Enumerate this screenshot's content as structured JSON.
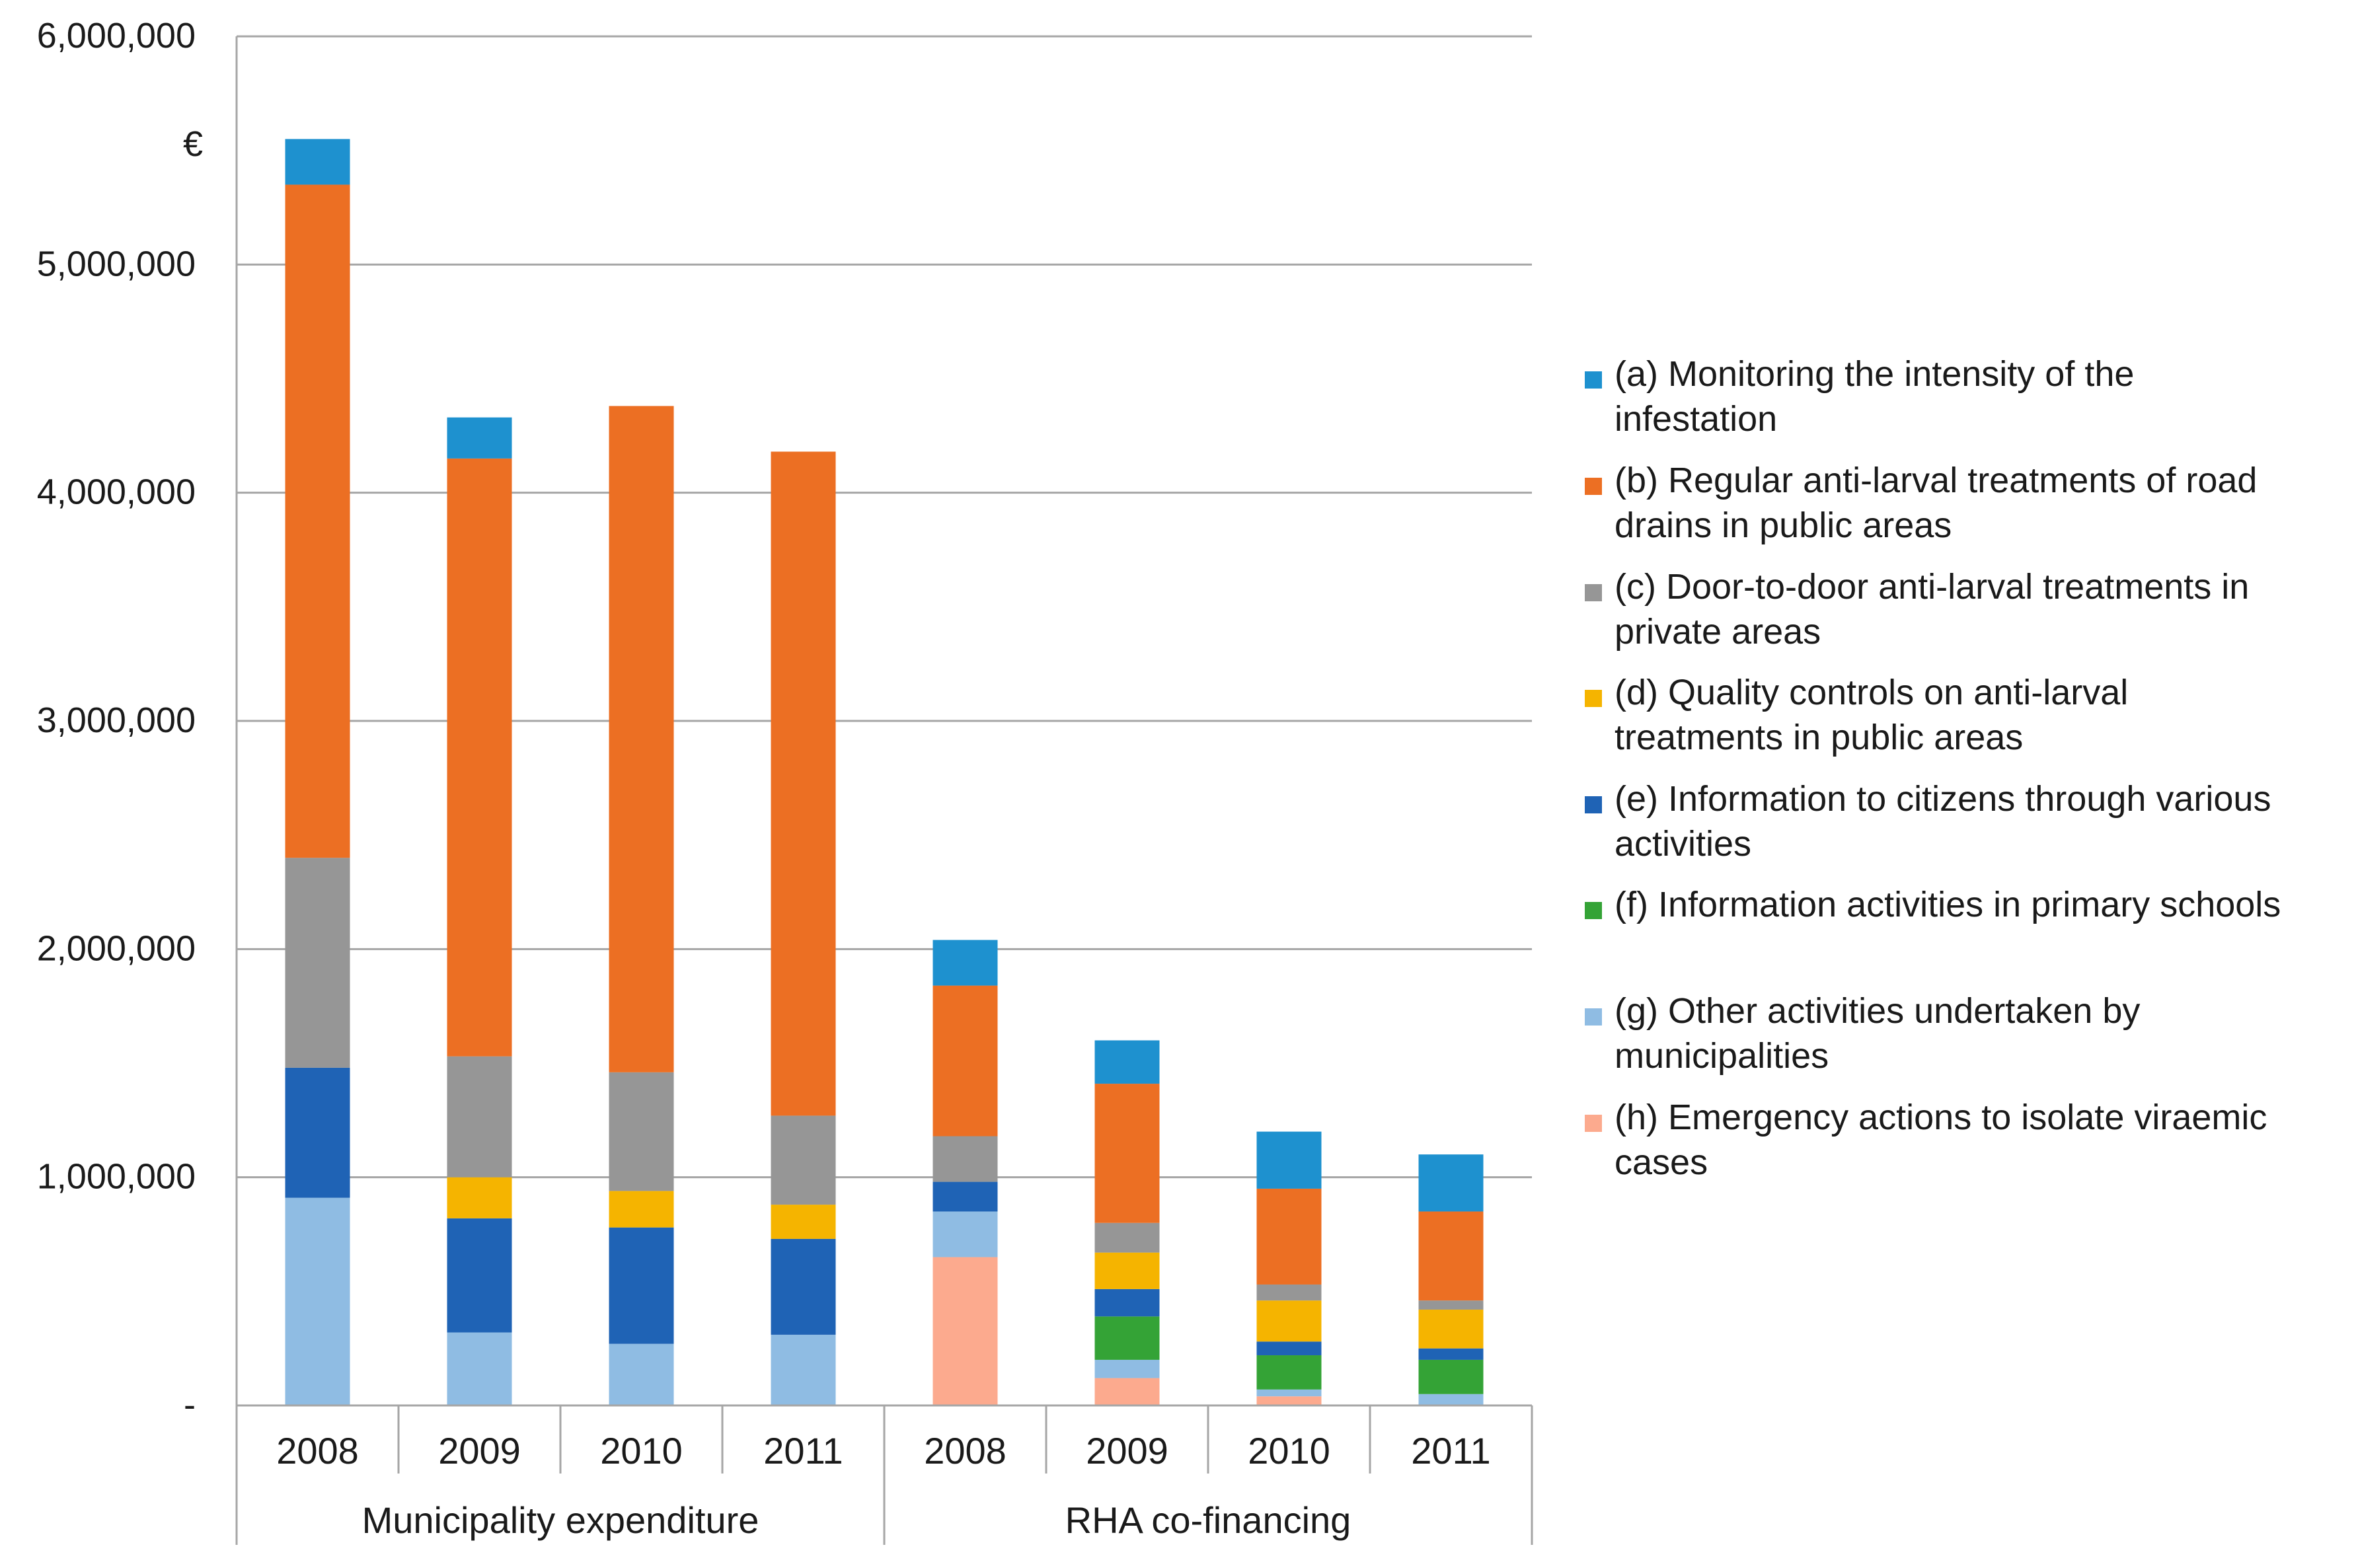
{
  "chart_data": {
    "type": "bar",
    "stacked": true,
    "unit_label": "€",
    "ylim": [
      0,
      6000000
    ],
    "y_ticks": [
      {
        "value": 0,
        "label": "-"
      },
      {
        "value": 1000000,
        "label": "1,000,000"
      },
      {
        "value": 2000000,
        "label": "2,000,000"
      },
      {
        "value": 3000000,
        "label": "3,000,000"
      },
      {
        "value": 4000000,
        "label": "4,000,000"
      },
      {
        "value": 5000000,
        "label": "5,000,000"
      },
      {
        "value": 6000000,
        "label": "6,000,000"
      }
    ],
    "categories": [
      "2008",
      "2009",
      "2010",
      "2011",
      "2008",
      "2009",
      "2010",
      "2011"
    ],
    "groups": [
      {
        "label": "Municipality expenditure",
        "span": 4
      },
      {
        "label": "RHA co-financing",
        "span": 4
      }
    ],
    "legend_position": "right",
    "series": [
      {
        "key": "h",
        "name": "(h) Emergency actions to isolate viraemic cases",
        "color": "#FCAA8E",
        "values": [
          0,
          0,
          0,
          0,
          650000,
          120000,
          40000,
          0
        ]
      },
      {
        "key": "g",
        "name": "(g) Other activities undertaken by municipalities",
        "color": "#8FBCE3",
        "values": [
          910000,
          320000,
          270000,
          310000,
          200000,
          80000,
          30000,
          50000
        ]
      },
      {
        "key": "f",
        "name": "(f) Information activities in primary schools",
        "color": "#34A336",
        "values": [
          0,
          0,
          0,
          0,
          0,
          190000,
          150000,
          150000
        ]
      },
      {
        "key": "e",
        "name": "(e) Information to citizens through various activities",
        "color": "#1F63B5",
        "values": [
          570000,
          500000,
          510000,
          420000,
          130000,
          120000,
          60000,
          50000
        ]
      },
      {
        "key": "d",
        "name": "(d) Quality controls on anti-larval treatments in public areas",
        "color": "#F5B400",
        "values": [
          0,
          180000,
          160000,
          150000,
          0,
          160000,
          180000,
          170000
        ]
      },
      {
        "key": "c",
        "name": "(c) Door-to-door anti-larval treatments in private areas",
        "color": "#969696",
        "values": [
          920000,
          530000,
          520000,
          390000,
          200000,
          130000,
          70000,
          40000
        ]
      },
      {
        "key": "b",
        "name": "(b) Regular anti-larval treatments of road drains in public areas",
        "color": "#EC6F23",
        "values": [
          2950000,
          2620000,
          2920000,
          2910000,
          660000,
          610000,
          420000,
          390000
        ]
      },
      {
        "key": "a",
        "name": "(a) Monitoring the intensity of the infestation",
        "color": "#1E91CF",
        "values": [
          200000,
          180000,
          0,
          0,
          200000,
          190000,
          250000,
          250000
        ]
      }
    ]
  },
  "legend": {
    "items": [
      {
        "color": "#1E91CF",
        "lines": [
          "(a) Monitoring the intensity of the",
          "infestation"
        ]
      },
      {
        "color": "#EC6F23",
        "lines": [
          "(b) Regular anti-larval treatments of road",
          "drains in public areas"
        ]
      },
      {
        "color": "#969696",
        "lines": [
          "(c) Door-to-door anti-larval treatments in",
          "private areas"
        ]
      },
      {
        "color": "#F5B400",
        "lines": [
          "(d) Quality controls on anti-larval",
          "treatments in public areas"
        ]
      },
      {
        "color": "#1F63B5",
        "lines": [
          "(e) Information to citizens through various",
          "activities"
        ]
      },
      {
        "color": "#34A336",
        "lines": [
          "(f) Information activities in primary schools"
        ]
      },
      {
        "color": "#8FBCE3",
        "lines": [
          "(g) Other activities undertaken by",
          "municipalities"
        ]
      },
      {
        "color": "#FCAA8E",
        "lines": [
          "(h) Emergency actions to isolate viraemic",
          "cases"
        ]
      }
    ]
  }
}
